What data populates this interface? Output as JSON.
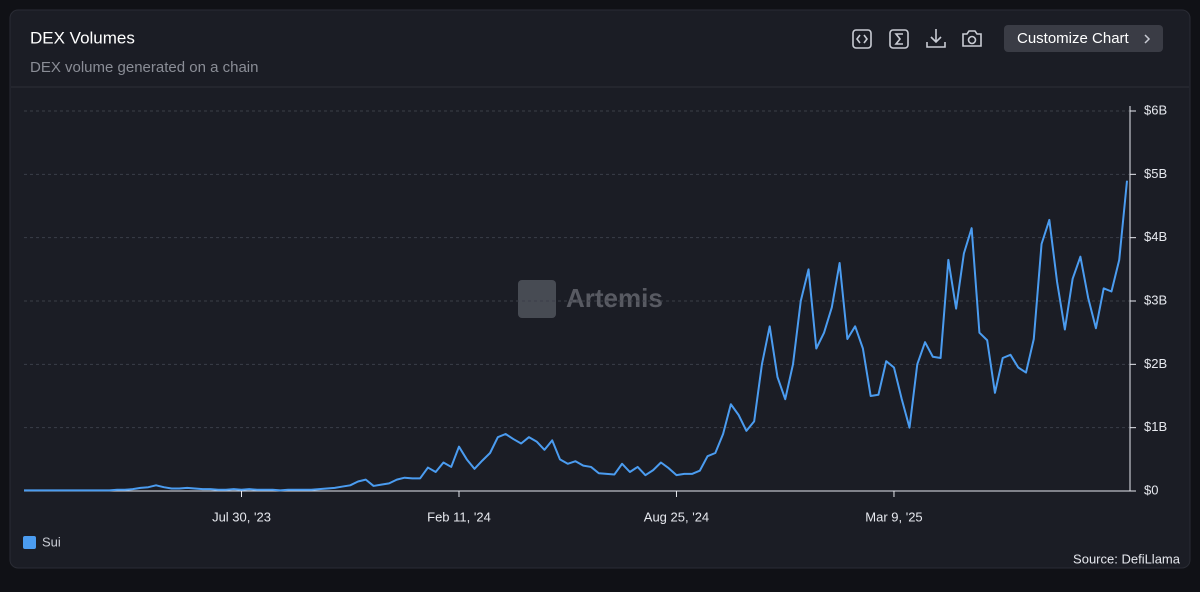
{
  "toolbar": {
    "button": "Customize Chart"
  },
  "chart_data": {
    "type": "line",
    "title": "DEX Volumes",
    "subtitle": "DEX volume generated on a chain",
    "watermark": "Artemis",
    "source": "Source: DefiLlama",
    "grid": true,
    "legend": "bottom-left",
    "x": [
      "2023-01-15",
      "2023-01-22",
      "2023-01-29",
      "2023-02-05",
      "2023-02-12",
      "2023-02-19",
      "2023-02-26",
      "2023-03-05",
      "2023-03-12",
      "2023-03-19",
      "2023-03-26",
      "2023-04-02",
      "2023-04-09",
      "2023-04-16",
      "2023-04-23",
      "2023-04-30",
      "2023-05-07",
      "2023-05-14",
      "2023-05-21",
      "2023-05-28",
      "2023-06-04",
      "2023-06-11",
      "2023-06-18",
      "2023-06-25",
      "2023-07-02",
      "2023-07-09",
      "2023-07-16",
      "2023-07-23",
      "2023-07-30",
      "2023-08-06",
      "2023-08-13",
      "2023-08-20",
      "2023-08-27",
      "2023-09-03",
      "2023-09-10",
      "2023-09-17",
      "2023-09-24",
      "2023-10-01",
      "2023-10-08",
      "2023-10-15",
      "2023-10-22",
      "2023-10-29",
      "2023-11-05",
      "2023-11-12",
      "2023-11-19",
      "2023-11-26",
      "2023-12-03",
      "2023-12-10",
      "2023-12-17",
      "2023-12-24",
      "2023-12-31",
      "2024-01-07",
      "2024-01-14",
      "2024-01-21",
      "2024-01-28",
      "2024-02-04",
      "2024-02-11",
      "2024-02-18",
      "2024-02-25",
      "2024-03-03",
      "2024-03-10",
      "2024-03-17",
      "2024-03-24",
      "2024-03-31",
      "2024-04-07",
      "2024-04-14",
      "2024-04-21",
      "2024-04-28",
      "2024-05-05",
      "2024-05-12",
      "2024-05-19",
      "2024-05-26",
      "2024-06-02",
      "2024-06-09",
      "2024-06-16",
      "2024-06-23",
      "2024-06-30",
      "2024-07-07",
      "2024-07-14",
      "2024-07-21",
      "2024-07-28",
      "2024-08-04",
      "2024-08-11",
      "2024-08-18",
      "2024-08-25",
      "2024-09-01",
      "2024-09-08",
      "2024-09-15",
      "2024-09-22",
      "2024-09-29",
      "2024-10-06",
      "2024-10-13",
      "2024-10-20",
      "2024-10-27",
      "2024-11-03",
      "2024-11-10",
      "2024-11-17",
      "2024-11-24",
      "2024-12-01",
      "2024-12-08",
      "2024-12-15",
      "2024-12-22",
      "2024-12-29",
      "2025-01-05",
      "2025-01-12",
      "2025-01-19",
      "2025-01-26",
      "2025-02-02",
      "2025-02-09",
      "2025-02-16",
      "2025-02-23",
      "2025-03-02",
      "2025-03-09",
      "2025-03-16",
      "2025-03-23",
      "2025-03-30",
      "2025-04-06",
      "2025-04-13",
      "2025-04-20",
      "2025-04-27",
      "2025-05-04",
      "2025-05-11",
      "2025-05-18",
      "2025-05-25",
      "2025-06-01",
      "2025-06-08",
      "2025-06-15",
      "2025-06-22",
      "2025-06-29",
      "2025-07-06",
      "2025-07-13",
      "2025-07-20",
      "2025-07-27",
      "2025-08-03",
      "2025-08-10",
      "2025-08-17",
      "2025-08-24",
      "2025-08-31",
      "2025-09-07",
      "2025-09-14",
      "2025-09-21",
      "2025-09-28",
      "2025-10-05"
    ],
    "series": [
      {
        "name": "Sui",
        "color": "#4b9cf0",
        "values": [
          0.01,
          0.01,
          0.01,
          0.01,
          0.01,
          0.01,
          0.01,
          0.01,
          0.01,
          0.01,
          0.01,
          0.01,
          0.02,
          0.02,
          0.03,
          0.05,
          0.06,
          0.09,
          0.06,
          0.04,
          0.04,
          0.05,
          0.04,
          0.03,
          0.03,
          0.02,
          0.02,
          0.03,
          0.02,
          0.03,
          0.02,
          0.02,
          0.02,
          0.01,
          0.02,
          0.02,
          0.02,
          0.02,
          0.03,
          0.04,
          0.05,
          0.07,
          0.09,
          0.15,
          0.18,
          0.08,
          0.1,
          0.12,
          0.18,
          0.21,
          0.2,
          0.2,
          0.37,
          0.3,
          0.45,
          0.38,
          0.7,
          0.5,
          0.35,
          0.48,
          0.6,
          0.85,
          0.9,
          0.82,
          0.75,
          0.85,
          0.78,
          0.65,
          0.8,
          0.5,
          0.43,
          0.47,
          0.4,
          0.38,
          0.28,
          0.27,
          0.26,
          0.43,
          0.3,
          0.38,
          0.25,
          0.33,
          0.45,
          0.36,
          0.25,
          0.27,
          0.27,
          0.32,
          0.55,
          0.6,
          0.9,
          1.37,
          1.2,
          0.95,
          1.1,
          2.0,
          2.6,
          1.8,
          1.45,
          2.0,
          3.0,
          3.5,
          2.25,
          2.5,
          2.9,
          3.6,
          2.4,
          2.6,
          2.25,
          1.5,
          1.52,
          2.05,
          1.95,
          1.45,
          1.0,
          2.0,
          2.35,
          2.12,
          2.1,
          3.65,
          2.88,
          3.75,
          4.15,
          2.5,
          2.38,
          1.55,
          2.1,
          2.15,
          1.95,
          1.87,
          2.4,
          3.9,
          4.28,
          3.3,
          2.55,
          3.35,
          3.7,
          3.05,
          2.57,
          3.2,
          3.15,
          3.65,
          4.9
        ]
      }
    ],
    "xlim": [
      "2023-01-15",
      "2025-10-05"
    ],
    "xticks": [
      {
        "value": "2023-07-30",
        "label": "Jul 30, '23"
      },
      {
        "value": "2024-02-11",
        "label": "Feb 11, '24"
      },
      {
        "value": "2024-08-25",
        "label": "Aug 25, '24"
      },
      {
        "value": "2025-03-09",
        "label": "Mar 9, '25"
      }
    ],
    "ylim": [
      0,
      6
    ],
    "yticks": [
      {
        "value": 0,
        "label": "$0"
      },
      {
        "value": 1,
        "label": "$1B"
      },
      {
        "value": 2,
        "label": "$2B"
      },
      {
        "value": 3,
        "label": "$3B"
      },
      {
        "value": 4,
        "label": "$4B"
      },
      {
        "value": 5,
        "label": "$5B"
      },
      {
        "value": 6,
        "label": "$6B"
      }
    ]
  }
}
